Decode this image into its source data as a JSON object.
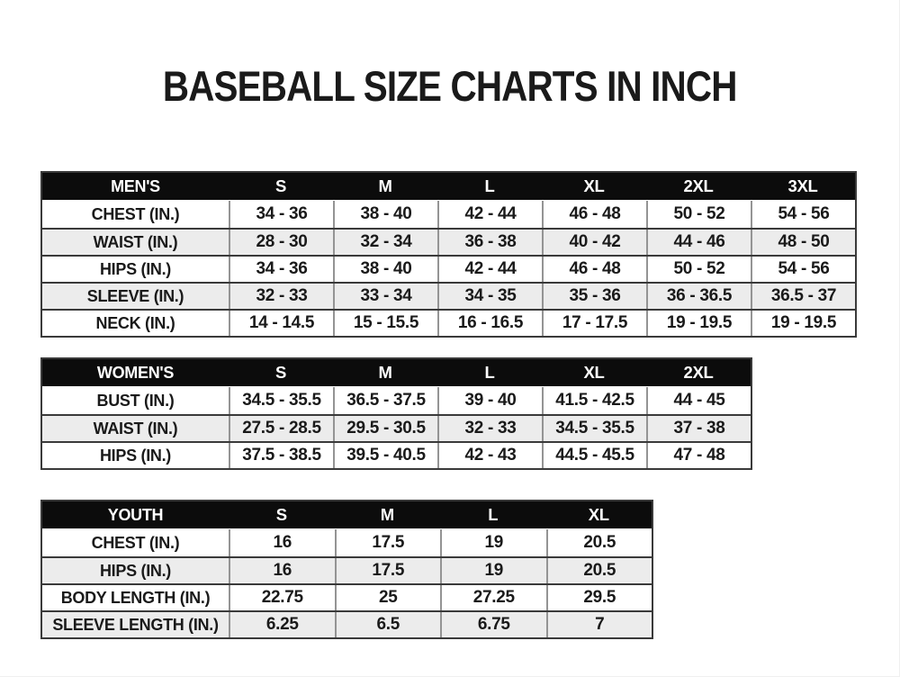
{
  "page": {
    "title": "BASEBALL SIZE CHARTS IN INCH"
  },
  "colors": {
    "page_bg": "#ffffff",
    "header_bg": "#0c0c0c",
    "header_text": "#ffffff",
    "row_bg": "#ffffff",
    "row_alt_bg": "#ececec",
    "border_dark": "#3a3a3a",
    "border_light": "#949494",
    "text": "#1a1a1a"
  },
  "tables": [
    {
      "id": "mens",
      "header": "MEN'S",
      "sizes": [
        "S",
        "M",
        "L",
        "XL",
        "2XL",
        "3XL"
      ],
      "rows": [
        {
          "label": "CHEST (IN.)",
          "values": [
            "34 - 36",
            "38 - 40",
            "42 - 44",
            "46 - 48",
            "50 - 52",
            "54 - 56"
          ]
        },
        {
          "label": "WAIST (IN.)",
          "values": [
            "28 - 30",
            "32 - 34",
            "36 - 38",
            "40 - 42",
            "44 - 46",
            "48 - 50"
          ]
        },
        {
          "label": "HIPS (IN.)",
          "values": [
            "34 - 36",
            "38 - 40",
            "42 - 44",
            "46 - 48",
            "50 - 52",
            "54 - 56"
          ]
        },
        {
          "label": "SLEEVE (IN.)",
          "values": [
            "32 - 33",
            "33 - 34",
            "34 - 35",
            "35 - 36",
            "36 - 36.5",
            "36.5 - 37"
          ]
        },
        {
          "label": "NECK (IN.)",
          "values": [
            "14 - 14.5",
            "15 - 15.5",
            "16 - 16.5",
            "17 - 17.5",
            "19 - 19.5",
            "19 - 19.5"
          ]
        }
      ]
    },
    {
      "id": "womens",
      "header": "WOMEN'S",
      "sizes": [
        "S",
        "M",
        "L",
        "XL",
        "2XL"
      ],
      "rows": [
        {
          "label": "BUST (IN.)",
          "values": [
            "34.5 - 35.5",
            "36.5 - 37.5",
            "39 - 40",
            "41.5 - 42.5",
            "44 - 45"
          ]
        },
        {
          "label": "WAIST (IN.)",
          "values": [
            "27.5 - 28.5",
            "29.5 - 30.5",
            "32 - 33",
            "34.5 - 35.5",
            "37 - 38"
          ]
        },
        {
          "label": "HIPS (IN.)",
          "values": [
            "37.5 - 38.5",
            "39.5 - 40.5",
            "42 - 43",
            "44.5 - 45.5",
            "47 - 48"
          ]
        }
      ]
    },
    {
      "id": "youth",
      "header": "YOUTH",
      "sizes": [
        "S",
        "M",
        "L",
        "XL"
      ],
      "rows": [
        {
          "label": "CHEST (IN.)",
          "values": [
            "16",
            "17.5",
            "19",
            "20.5"
          ]
        },
        {
          "label": "HIPS (IN.)",
          "values": [
            "16",
            "17.5",
            "19",
            "20.5"
          ]
        },
        {
          "label": "BODY LENGTH (IN.)",
          "values": [
            "22.75",
            "25",
            "27.25",
            "29.5"
          ]
        },
        {
          "label": "SLEEVE LENGTH (IN.)",
          "values": [
            "6.25",
            "6.5",
            "6.75",
            "7"
          ]
        }
      ]
    }
  ]
}
